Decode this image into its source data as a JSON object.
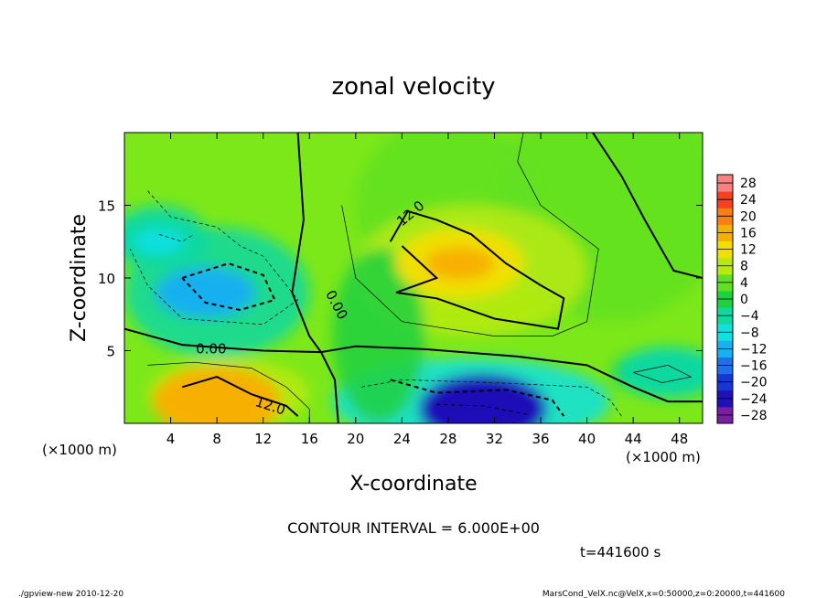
{
  "chart_data": {
    "type": "heatmap",
    "title": "zonal velocity",
    "xlabel": "X-coordinate",
    "ylabel": "Z-coordinate",
    "x_unit_left": "(×1000 m)",
    "x_unit_right": "(×1000 m)",
    "xlim": [
      0,
      50
    ],
    "ylim": [
      0,
      20
    ],
    "x_ticks": [
      4,
      8,
      12,
      16,
      20,
      24,
      28,
      32,
      36,
      40,
      44,
      48
    ],
    "y_ticks": [
      5,
      10,
      15
    ],
    "colorbar": {
      "ticks": [
        28,
        24,
        20,
        16,
        12,
        8,
        4,
        0,
        -4,
        -8,
        -12,
        -16,
        -20,
        -24,
        -28
      ],
      "labels": [
        "28",
        "24",
        "20",
        "16",
        "12",
        "8",
        "4",
        "0",
        "−4",
        "−8",
        "−12",
        "−16",
        "−20",
        "−24",
        "−28"
      ],
      "range": [
        -30,
        30
      ]
    },
    "contour_labels": [
      {
        "text": "12.0",
        "x": 25.0,
        "y": 14.2
      },
      {
        "text": "0.00",
        "x": 18.0,
        "y": 8.0
      },
      {
        "text": "0.00",
        "x": 7.5,
        "y": 4.8
      },
      {
        "text": "12.0",
        "x": 12.5,
        "y": 0.9
      }
    ],
    "features": [
      {
        "kind": "max",
        "x": 29,
        "y": 11,
        "value": 14
      },
      {
        "kind": "max",
        "x": 8,
        "y": 1.5,
        "value": 16
      },
      {
        "kind": "min",
        "x": 31,
        "y": 1,
        "value": -24
      },
      {
        "kind": "min",
        "x": 7,
        "y": 9,
        "value": -11
      },
      {
        "kind": "min",
        "x": 3,
        "y": 12.5,
        "value": -6
      },
      {
        "kind": "min",
        "x": 47,
        "y": 3.5,
        "value": -4
      }
    ],
    "contour_interval": "CONTOUR INTERVAL = 6.000E+00",
    "time": "t=441600 s"
  },
  "footer": {
    "left": "./gpview-new  2010-12-20",
    "right": "MarsCond_VelX.nc@VelX,x=0:50000,z=0:20000,t=441600"
  },
  "colors": {
    "scale": [
      "#7a1fa2",
      "#1f10b8",
      "#1437d6",
      "#1e6fe8",
      "#19b0f0",
      "#10e0e0",
      "#10d8a0",
      "#20d040",
      "#60e020",
      "#b8ea10",
      "#f0e000",
      "#f8b000",
      "#f88010",
      "#f84020",
      "#f88080"
    ]
  }
}
